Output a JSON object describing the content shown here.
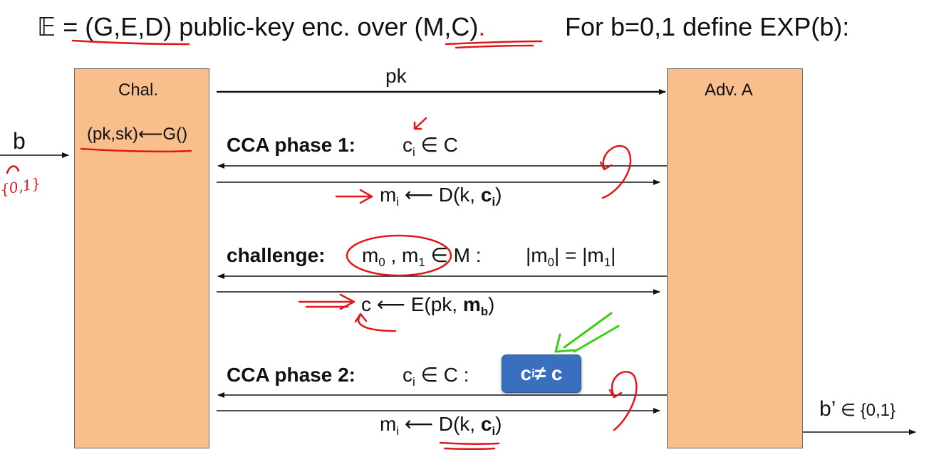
{
  "title": {
    "scheme_symbol": "𝔼",
    "scheme_def": " = (G,E,D)",
    "middle": " public-key enc. over ",
    "spaces": "(M,C)",
    "dot": ".",
    "for_text": "For   b=0,1   define EXP(b):"
  },
  "challenger": {
    "label": "Chal.",
    "keygen": "(pk,sk)⟵G()"
  },
  "adversary": {
    "label": "Adv. A"
  },
  "inputs": {
    "b_label": "b",
    "b_scribble": "{0,1}"
  },
  "messages": {
    "pk": "pk",
    "phase1_label": "CCA phase 1:",
    "phase1_ci": "c",
    "phase1_ci_sub": "i",
    "phase1_ci_rest": " ∈ C",
    "phase1_resp_m": "m",
    "phase1_resp_sub": "i",
    "phase1_resp_mid": " ⟵ D(k, ",
    "phase1_resp_c": "c",
    "phase1_resp_c_sub": "i",
    "phase1_resp_end": ")",
    "challenge_label": "challenge:",
    "m0": "m",
    "m0_sub": "0",
    "comma": " , ",
    "m1": "m",
    "m1_sub": "1",
    "in_M": " ∈ M :",
    "len_eq_a": "|m",
    "len_eq_a_sub": "0",
    "len_eq_mid": "| = |m",
    "len_eq_b_sub": "1",
    "len_eq_end": "|",
    "challenge_resp_a": "c ⟵ E(pk, ",
    "challenge_resp_m": "m",
    "challenge_resp_sub": "b",
    "challenge_resp_end": ")",
    "phase2_label": "CCA phase 2:",
    "phase2_ci": "c",
    "phase2_ci_sub": "i",
    "phase2_ci_rest": " ∈ C  :",
    "phase2_constraint": "c",
    "phase2_constraint_sub": "i",
    "phase2_constraint_rest": " ≠ c",
    "phase2_resp_m": "m",
    "phase2_resp_sub": "i",
    "phase2_resp_mid": " ⟵ D(k, ",
    "phase2_resp_c": "c",
    "phase2_resp_c_sub": "i",
    "phase2_resp_end": ")",
    "output": "b’",
    "output_rest": " ∈ {0,1}"
  },
  "colors": {
    "box_fill": "#f8be8c",
    "highlight": "#3a6fbf",
    "annotation_red": "#e0161b",
    "annotation_green": "#3ccf1a"
  }
}
